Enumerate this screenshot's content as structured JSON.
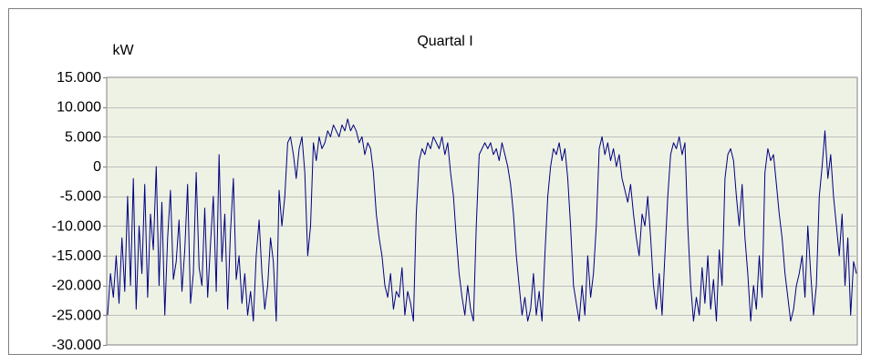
{
  "chart_data": {
    "type": "line",
    "title": "Quartal I",
    "ylabel": "kW",
    "xlabel": "",
    "ylim": [
      -30000,
      15000
    ],
    "yticks": [
      15000,
      10000,
      5000,
      0,
      -5000,
      -10000,
      -15000,
      -20000,
      -25000,
      -30000
    ],
    "ytick_labels": [
      "15.000",
      "10.000",
      "5.000",
      "0",
      "-5.000",
      "-10.000",
      "-15.000",
      "-20.000",
      "-25.000",
      "-30.000"
    ],
    "grid": true,
    "legend": "none",
    "plot_background": "#eef2e4",
    "grid_color": "#bfbfbf",
    "series": [
      {
        "color": "#000080",
        "values": [
          -25000,
          -18000,
          -22000,
          -15000,
          -23000,
          -12000,
          -21000,
          -5000,
          -20000,
          -2000,
          -24000,
          -10000,
          -18000,
          -3000,
          -22000,
          -8000,
          -14000,
          0,
          -20000,
          -6000,
          -25000,
          -12000,
          -4000,
          -19000,
          -16000,
          -9000,
          -21000,
          -14000,
          -3000,
          -23000,
          -18000,
          -1000,
          -17000,
          -20000,
          -7000,
          -22000,
          -13000,
          -5000,
          -21000,
          2000,
          -16000,
          -8000,
          -24000,
          -11000,
          -2000,
          -19000,
          -15000,
          -23000,
          -18000,
          -25000,
          -21000,
          -26000,
          -15000,
          -9000,
          -18000,
          -24000,
          -20000,
          -12000,
          -16000,
          -26000,
          -4000,
          -10000,
          -5000,
          4000,
          5000,
          2000,
          -2000,
          3000,
          5000,
          -1000,
          -15000,
          -10000,
          4000,
          1000,
          5000,
          3000,
          4000,
          6000,
          5000,
          7000,
          6000,
          5000,
          7000,
          6000,
          8000,
          6000,
          7000,
          6000,
          4000,
          5000,
          2000,
          4000,
          3000,
          -1000,
          -8000,
          -12000,
          -15000,
          -20000,
          -22000,
          -18000,
          -24000,
          -21000,
          -22000,
          -17000,
          -25000,
          -21000,
          -23000,
          -26000,
          -8000,
          1000,
          3000,
          2000,
          4000,
          3000,
          5000,
          4000,
          3000,
          5000,
          2000,
          4000,
          -1000,
          -5000,
          -12000,
          -18000,
          -22000,
          -25000,
          -20000,
          -24000,
          -26000,
          -10000,
          2000,
          3000,
          4000,
          3000,
          4000,
          2000,
          3000,
          1000,
          4000,
          2000,
          0,
          -3000,
          -8000,
          -15000,
          -20000,
          -25000,
          -22000,
          -26000,
          -24000,
          -18000,
          -25000,
          -21000,
          -26000,
          -15000,
          -5000,
          0,
          3000,
          2000,
          4000,
          1000,
          3000,
          -2000,
          -10000,
          -20000,
          -23000,
          -26000,
          -20000,
          -25000,
          -15000,
          -22000,
          -18000,
          -10000,
          3000,
          5000,
          2000,
          4000,
          1000,
          3000,
          0,
          2000,
          -2000,
          -4000,
          -6000,
          -3000,
          -8000,
          -12000,
          -15000,
          -8000,
          -10000,
          -5000,
          -12000,
          -20000,
          -24000,
          -18000,
          -25000,
          -15000,
          -5000,
          2000,
          4000,
          3000,
          5000,
          2000,
          4000,
          -10000,
          -20000,
          -26000,
          -22000,
          -25000,
          -17000,
          -23000,
          -15000,
          -24000,
          -19000,
          -26000,
          -14000,
          -20000,
          -2000,
          2000,
          3000,
          1000,
          -5000,
          -10000,
          -3000,
          -12000,
          -18000,
          -26000,
          -20000,
          -24000,
          -15000,
          -22000,
          -1000,
          3000,
          1000,
          2000,
          -3000,
          -8000,
          -12000,
          -18000,
          -22000,
          -26000,
          -24000,
          -20000,
          -18000,
          -15000,
          -22000,
          -10000,
          -18000,
          -25000,
          -20000,
          -5000,
          0,
          6000,
          -2000,
          2000,
          -5000,
          -10000,
          -15000,
          -8000,
          -20000,
          -12000,
          -25000,
          -16000,
          -18000
        ]
      }
    ]
  }
}
